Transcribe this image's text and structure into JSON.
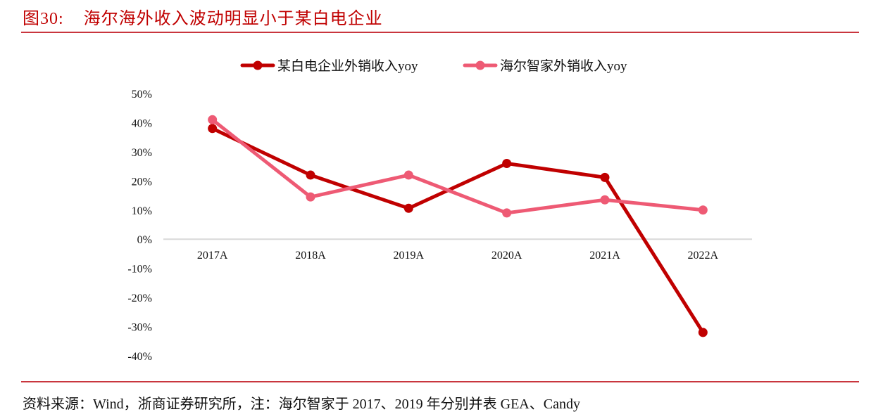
{
  "header": {
    "figure_number": "图30:",
    "title": "海尔海外收入波动明显小于某白电企业"
  },
  "footer": {
    "source": "资料来源：Wind，浙商证券研究所，注：海尔智家于 2017、2019 年分别并表 GEA、Candy"
  },
  "chart_data": {
    "type": "line",
    "title": "海尔海外收入波动明显小于某白电企业",
    "xlabel": "",
    "ylabel": "",
    "categories": [
      "2017A",
      "2018A",
      "2019A",
      "2020A",
      "2021A",
      "2022A"
    ],
    "ylim": [
      -40,
      50
    ],
    "yticks": [
      50,
      40,
      30,
      20,
      10,
      0,
      -10,
      -20,
      -30,
      -40
    ],
    "ytick_labels": [
      "50%",
      "40%",
      "30%",
      "20%",
      "10%",
      "0%",
      "-10%",
      "-20%",
      "-30%",
      "-40%"
    ],
    "grid": false,
    "legend_position": "top-center",
    "series": [
      {
        "name": "某白电企业外销收入yoy",
        "color": "#c00000",
        "values": [
          38,
          22,
          10.6,
          26,
          21.2,
          -32
        ]
      },
      {
        "name": "海尔智家外销收入yoy",
        "color": "#ee5a74",
        "values": [
          41,
          14.5,
          22,
          9,
          13.5,
          10
        ]
      }
    ],
    "units": "%"
  }
}
